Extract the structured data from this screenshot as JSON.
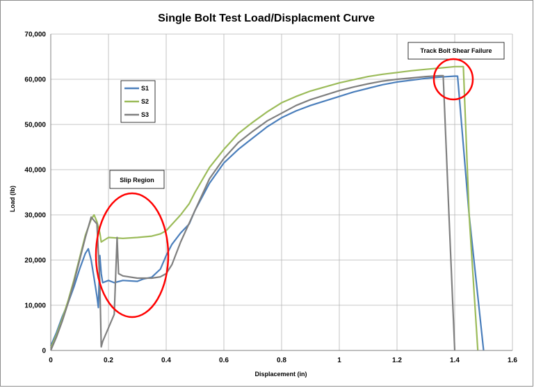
{
  "chart_data": {
    "type": "line",
    "title": "Single Bolt Test Load/Displacment Curve",
    "xlabel": "Displacement (in)",
    "ylabel": "Load (lb)",
    "xlim": [
      0,
      1.6
    ],
    "ylim": [
      0,
      70000
    ],
    "xticks": [
      0,
      0.2,
      0.4,
      0.6,
      0.8,
      1,
      1.2,
      1.4,
      1.6
    ],
    "xtick_labels": [
      "0",
      "0.2",
      "0.4",
      "0.6",
      "0.8",
      "1",
      "1.2",
      "1.4",
      "1.6"
    ],
    "yticks": [
      0,
      10000,
      20000,
      30000,
      40000,
      50000,
      60000,
      70000
    ],
    "ytick_labels": [
      "0",
      "10,000",
      "20,000",
      "30,000",
      "40,000",
      "50,000",
      "60,000",
      "70,000"
    ],
    "grid": "horizontal and vertical",
    "legend_position": "upper-left inside plot",
    "series": [
      {
        "name": "S1",
        "color": "#4a7ebb",
        "points": [
          [
            0,
            1000
          ],
          [
            0.02,
            4000
          ],
          [
            0.04,
            7500
          ],
          [
            0.06,
            10500
          ],
          [
            0.08,
            14000
          ],
          [
            0.1,
            18000
          ],
          [
            0.12,
            21500
          ],
          [
            0.13,
            22500
          ],
          [
            0.14,
            20000
          ],
          [
            0.15,
            16000
          ],
          [
            0.16,
            12000
          ],
          [
            0.165,
            9500
          ],
          [
            0.17,
            21000
          ],
          [
            0.175,
            17000
          ],
          [
            0.18,
            15000
          ],
          [
            0.2,
            15500
          ],
          [
            0.22,
            15000
          ],
          [
            0.25,
            15500
          ],
          [
            0.3,
            15300
          ],
          [
            0.32,
            15800
          ],
          [
            0.35,
            16200
          ],
          [
            0.38,
            18000
          ],
          [
            0.4,
            21000
          ],
          [
            0.42,
            23500
          ],
          [
            0.45,
            26000
          ],
          [
            0.48,
            28000
          ],
          [
            0.5,
            31000
          ],
          [
            0.55,
            37000
          ],
          [
            0.6,
            41500
          ],
          [
            0.65,
            44500
          ],
          [
            0.7,
            47000
          ],
          [
            0.75,
            49500
          ],
          [
            0.8,
            51500
          ],
          [
            0.85,
            53000
          ],
          [
            0.9,
            54200
          ],
          [
            0.95,
            55200
          ],
          [
            1.0,
            56200
          ],
          [
            1.05,
            57200
          ],
          [
            1.1,
            58000
          ],
          [
            1.15,
            58800
          ],
          [
            1.2,
            59400
          ],
          [
            1.25,
            59800
          ],
          [
            1.3,
            60200
          ],
          [
            1.35,
            60500
          ],
          [
            1.4,
            60700
          ],
          [
            1.41,
            60700
          ],
          [
            1.45,
            30000
          ],
          [
            1.5,
            0
          ]
        ]
      },
      {
        "name": "S2",
        "color": "#9bbb59",
        "points": [
          [
            0,
            500
          ],
          [
            0.02,
            3500
          ],
          [
            0.04,
            7000
          ],
          [
            0.06,
            11000
          ],
          [
            0.08,
            15500
          ],
          [
            0.1,
            20500
          ],
          [
            0.12,
            25500
          ],
          [
            0.14,
            29000
          ],
          [
            0.15,
            30000
          ],
          [
            0.16,
            28500
          ],
          [
            0.17,
            26000
          ],
          [
            0.175,
            24000
          ],
          [
            0.2,
            25000
          ],
          [
            0.25,
            24800
          ],
          [
            0.3,
            25000
          ],
          [
            0.35,
            25300
          ],
          [
            0.38,
            25800
          ],
          [
            0.4,
            26500
          ],
          [
            0.45,
            30000
          ],
          [
            0.48,
            32500
          ],
          [
            0.5,
            35000
          ],
          [
            0.55,
            40500
          ],
          [
            0.6,
            44500
          ],
          [
            0.65,
            48000
          ],
          [
            0.7,
            50500
          ],
          [
            0.75,
            52800
          ],
          [
            0.8,
            54800
          ],
          [
            0.85,
            56200
          ],
          [
            0.9,
            57400
          ],
          [
            0.95,
            58300
          ],
          [
            1.0,
            59200
          ],
          [
            1.05,
            59900
          ],
          [
            1.1,
            60600
          ],
          [
            1.15,
            61100
          ],
          [
            1.2,
            61500
          ],
          [
            1.25,
            61900
          ],
          [
            1.3,
            62200
          ],
          [
            1.35,
            62500
          ],
          [
            1.4,
            62800
          ],
          [
            1.43,
            62800
          ],
          [
            1.45,
            30000
          ],
          [
            1.48,
            0
          ]
        ]
      },
      {
        "name": "S3",
        "color": "#7f7f7f",
        "points": [
          [
            0,
            0
          ],
          [
            0.02,
            3000
          ],
          [
            0.04,
            6500
          ],
          [
            0.06,
            10500
          ],
          [
            0.08,
            15000
          ],
          [
            0.1,
            20000
          ],
          [
            0.12,
            25000
          ],
          [
            0.14,
            29500
          ],
          [
            0.16,
            28000
          ],
          [
            0.17,
            15000
          ],
          [
            0.175,
            800
          ],
          [
            0.18,
            2000
          ],
          [
            0.2,
            5000
          ],
          [
            0.22,
            8000
          ],
          [
            0.23,
            25000
          ],
          [
            0.235,
            17000
          ],
          [
            0.25,
            16500
          ],
          [
            0.3,
            16000
          ],
          [
            0.35,
            16000
          ],
          [
            0.38,
            16300
          ],
          [
            0.4,
            17000
          ],
          [
            0.42,
            19000
          ],
          [
            0.45,
            24000
          ],
          [
            0.5,
            31000
          ],
          [
            0.55,
            38000
          ],
          [
            0.6,
            42500
          ],
          [
            0.65,
            46000
          ],
          [
            0.7,
            48500
          ],
          [
            0.75,
            50800
          ],
          [
            0.8,
            52500
          ],
          [
            0.85,
            54200
          ],
          [
            0.9,
            55500
          ],
          [
            0.95,
            56500
          ],
          [
            1.0,
            57500
          ],
          [
            1.05,
            58300
          ],
          [
            1.1,
            59000
          ],
          [
            1.15,
            59600
          ],
          [
            1.2,
            60000
          ],
          [
            1.25,
            60300
          ],
          [
            1.3,
            60600
          ],
          [
            1.35,
            60800
          ],
          [
            1.36,
            60800
          ],
          [
            1.38,
            30000
          ],
          [
            1.4,
            0
          ]
        ]
      }
    ],
    "annotations": [
      {
        "text": "Slip Region",
        "shape": "ellipse",
        "x": 0.28,
        "y": 24000
      },
      {
        "text": "Track Bolt Shear Failure",
        "shape": "circle",
        "x": 1.4,
        "y": 60000
      }
    ]
  }
}
